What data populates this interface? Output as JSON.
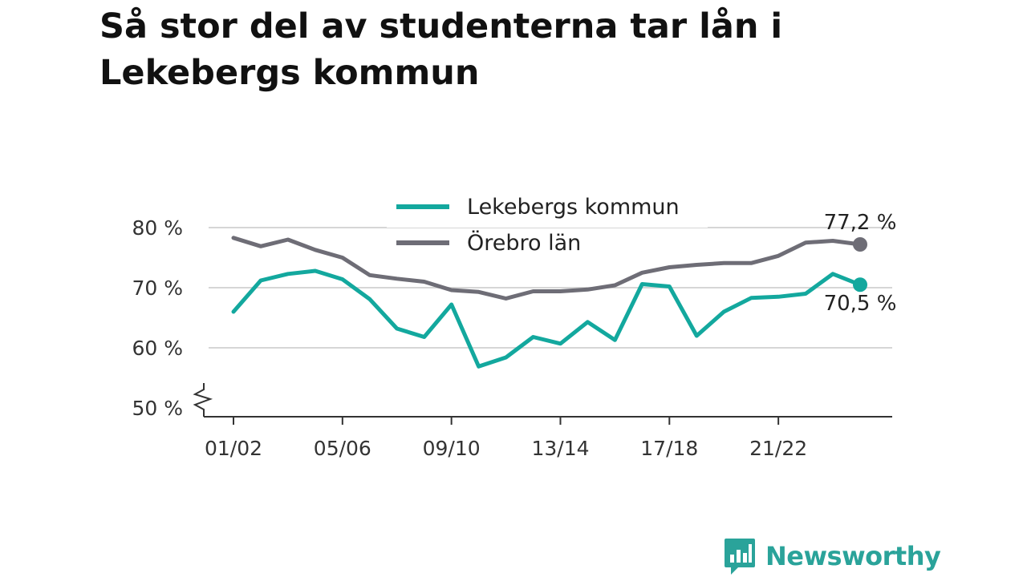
{
  "title": "Så stor del av studenterna tar lån i Lekebergs kommun",
  "brand": {
    "name": "Newsworthy",
    "icon": "bar-chart-speech-bubble-icon",
    "color": "#2aa39a"
  },
  "chart_data": {
    "type": "line",
    "title": "Så stor del av studenterna tar lån i Lekebergs kommun",
    "xlabel": "",
    "ylabel": "",
    "x": [
      "01/02",
      "02/03",
      "03/04",
      "04/05",
      "05/06",
      "06/07",
      "07/08",
      "08/09",
      "09/10",
      "10/11",
      "11/12",
      "12/13",
      "13/14",
      "14/15",
      "15/16",
      "16/17",
      "17/18",
      "18/19",
      "19/20",
      "20/21",
      "21/22",
      "22/23",
      "23/24",
      "24/25"
    ],
    "xticks": [
      "01/02",
      "05/06",
      "09/10",
      "13/14",
      "17/18",
      "21/22"
    ],
    "yticks": [
      "50 %",
      "60 %",
      "70 %",
      "80 %"
    ],
    "ylim": [
      50,
      80
    ],
    "axis_break": true,
    "grid": true,
    "legend_position": "top-center",
    "series": [
      {
        "name": "Lekebergs kommun",
        "color": "#13a89e",
        "values": [
          66.0,
          71.2,
          72.3,
          72.8,
          71.4,
          68.1,
          63.2,
          61.8,
          67.2,
          56.9,
          58.4,
          61.8,
          60.7,
          64.3,
          61.3,
          70.6,
          70.2,
          62.0,
          66.0,
          68.3,
          68.5,
          69.0,
          72.3,
          70.5
        ],
        "end_label": "70,5 %"
      },
      {
        "name": "Örebro län",
        "color": "#6e6d76",
        "values": [
          78.3,
          76.9,
          78.0,
          76.3,
          75.0,
          72.1,
          71.5,
          71.0,
          69.6,
          69.3,
          68.2,
          69.4,
          69.4,
          69.7,
          70.4,
          72.5,
          73.4,
          73.8,
          74.1,
          74.1,
          75.3,
          77.5,
          77.8,
          77.2
        ],
        "end_label": "77,2 %"
      }
    ]
  }
}
